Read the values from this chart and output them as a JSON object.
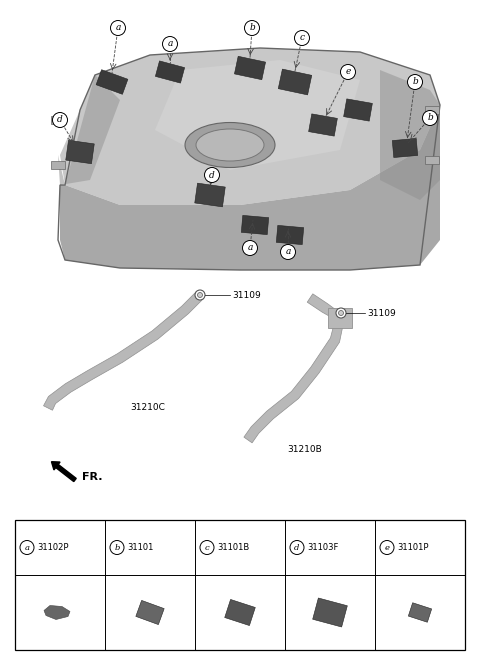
{
  "bg_color": "#ffffff",
  "parts": [
    {
      "letter": "a",
      "part_num": "31102P"
    },
    {
      "letter": "b",
      "part_num": "31101"
    },
    {
      "letter": "c",
      "part_num": "31101B"
    },
    {
      "letter": "d",
      "part_num": "31103F"
    },
    {
      "letter": "e",
      "part_num": "31101P"
    }
  ],
  "bolt_label": "31109",
  "label_31210C": "31210C",
  "label_31210B": "31210B",
  "fr_label": "FR.",
  "figsize": [
    4.8,
    6.56
  ],
  "dpi": 100,
  "tank_top_color": "#c0c0c0",
  "tank_mid_color": "#b0b0b0",
  "tank_dark_color": "#909090",
  "tank_side_color": "#a0a0a0",
  "pad_color": "#4a4a4a",
  "strap_color": "#b8b8b8",
  "strap_edge": "#909090",
  "leader_color": "#444444",
  "table_border": "#555555"
}
